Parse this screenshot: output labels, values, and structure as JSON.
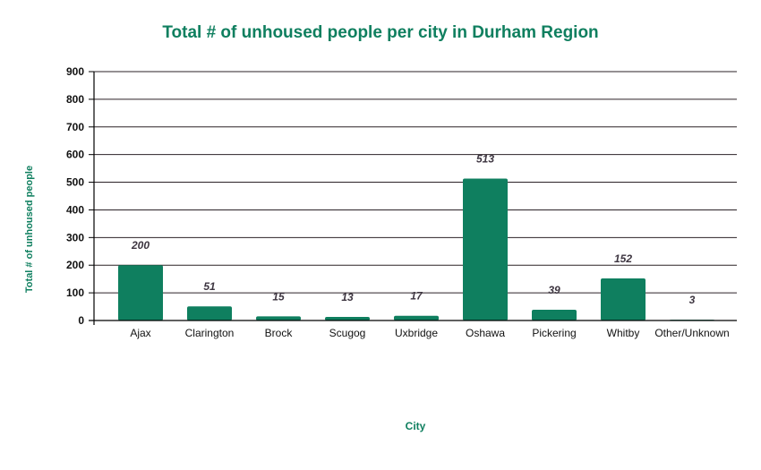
{
  "chart_data": {
    "type": "bar",
    "title": "Total # of unhoused people per city in Durham Region",
    "xlabel": "City",
    "ylabel": "Total # of unhoused people",
    "categories": [
      "Ajax",
      "Clarington",
      "Brock",
      "Scugog",
      "Uxbridge",
      "Oshawa",
      "Pickering",
      "Whitby",
      "Other/Unknown"
    ],
    "values": [
      200,
      51,
      15,
      13,
      17,
      513,
      39,
      152,
      3
    ],
    "ylim": [
      0,
      900
    ],
    "yticks": [
      0,
      100,
      200,
      300,
      400,
      500,
      600,
      700,
      800,
      900
    ],
    "grid": true,
    "legend": null,
    "data_labels": true,
    "bar_color": "#0f7f5f",
    "title_color": "#0f7f5f"
  }
}
